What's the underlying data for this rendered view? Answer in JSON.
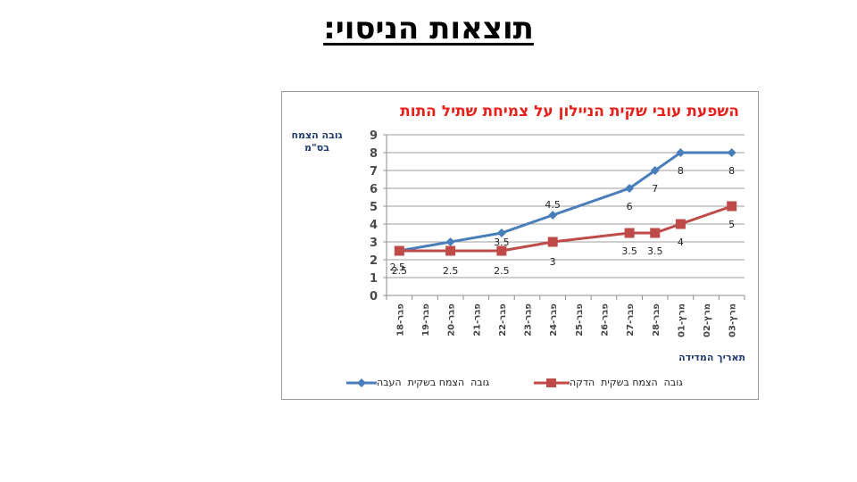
{
  "slide": {
    "title": "תוצאות הניסוי:"
  },
  "chart_data": {
    "type": "line",
    "title": "השפעת עובי שקית הניילון על צמיחת שתיל התות",
    "xlabel": "תאריך המדידה",
    "ylabel": "גובה הצמח בס\"מ",
    "ylabel_lines": [
      "גובה הצמח",
      "בס\"מ"
    ],
    "ylim": [
      0,
      9
    ],
    "yticks": [
      0,
      1,
      2,
      3,
      4,
      5,
      6,
      7,
      8,
      9
    ],
    "grid": true,
    "legend_position": "bottom",
    "categories": [
      "18-פבר",
      "19-פבר",
      "20-פבר",
      "21-פבר",
      "22-פבר",
      "23-פבר",
      "24-פבר",
      "25-פבר",
      "26-פבר",
      "27-פבר",
      "28-פבר",
      "01-מרץ",
      "02-מרץ",
      "03-מרץ"
    ],
    "series": [
      {
        "name": "גובה  הצמח בשקית  העבה",
        "color": "#4a7ebb",
        "marker": "diamond",
        "values": [
          2.5,
          null,
          3,
          null,
          3.5,
          null,
          4.5,
          null,
          null,
          6,
          7,
          8,
          null,
          8
        ]
      },
      {
        "name": "גובה  הצמח בשקית  הדקה",
        "color": "#be4b48",
        "marker": "square",
        "values": [
          2.5,
          null,
          2.5,
          null,
          2.5,
          null,
          3,
          null,
          null,
          3.5,
          3.5,
          4,
          null,
          5
        ]
      }
    ]
  }
}
